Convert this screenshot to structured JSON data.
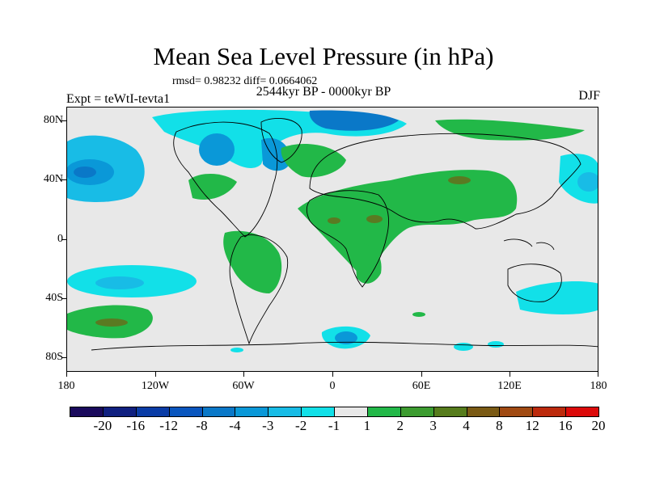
{
  "header": {
    "title": "Mean Sea Level Pressure (in hPa)",
    "stats": "rmsd= 0.98232 diff= 0.0664062",
    "period": "2544kyr BP - 0000kyr BP",
    "experiment": "Expt = teWtI-tevta1",
    "season": "DJF"
  },
  "axes": {
    "y_labels": [
      "80N",
      "40N",
      "0",
      "40S",
      "80S"
    ],
    "x_labels": [
      "180",
      "120W",
      "60W",
      "0",
      "60E",
      "120E",
      "180"
    ]
  },
  "legend": {
    "labels": [
      "-20",
      "-16",
      "-12",
      "-8",
      "-4",
      "-3",
      "-2",
      "-1",
      "1",
      "2",
      "3",
      "4",
      "8",
      "12",
      "16",
      "20"
    ],
    "colors": [
      "#1a0a5c",
      "#102080",
      "#0a3ca6",
      "#0a56be",
      "#0a78c8",
      "#0a98d8",
      "#18bce6",
      "#12e0e8",
      "#e8e8e8",
      "#22b848",
      "#3c9c30",
      "#567c1c",
      "#7a5a14",
      "#a04a12",
      "#bc2a0c",
      "#dc0a0a"
    ]
  },
  "palette": {
    "neutral": "#e8e8e8",
    "green": "#22b848",
    "olive": "#5a7a22",
    "light_blue": "#12e0e8",
    "mid_blue": "#18bce6",
    "blue": "#0a78c8",
    "dark_blue": "#0a56be"
  }
}
